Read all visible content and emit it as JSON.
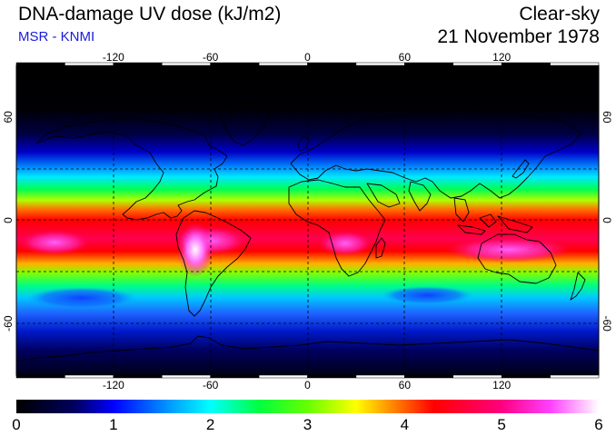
{
  "header": {
    "title": "DNA-damage UV dose (kJ/m2)",
    "source": "MSR - KNMI",
    "sky_condition": "Clear-sky",
    "date": "21 November 1978"
  },
  "map": {
    "projection": "equirectangular",
    "lon_range": [
      -180,
      180
    ],
    "lat_range": [
      -90,
      90
    ],
    "graticule": "dashed",
    "lon_ticks": [
      -120,
      -60,
      0,
      60,
      120
    ],
    "lon_tick_labels": [
      "-120",
      "-60",
      "0",
      "60",
      "120"
    ],
    "lat_ticks": [
      60,
      0,
      -60
    ],
    "lat_tick_labels": [
      "60",
      "0",
      "-60"
    ],
    "colors": {
      "coastline": "#000000",
      "graticule": "#000000",
      "frame": "#000000"
    }
  },
  "colorbar": {
    "min": 0,
    "max": 6,
    "labels": [
      "0",
      "1",
      "2",
      "3",
      "4",
      "5",
      "6"
    ],
    "color_stops": [
      {
        "value": 0.0,
        "color": "#000000"
      },
      {
        "value": 0.6,
        "color": "#000060"
      },
      {
        "value": 1.0,
        "color": "#0000ff"
      },
      {
        "value": 1.6,
        "color": "#00a0ff"
      },
      {
        "value": 2.0,
        "color": "#00ffff"
      },
      {
        "value": 2.5,
        "color": "#00ff40"
      },
      {
        "value": 3.0,
        "color": "#66ff00"
      },
      {
        "value": 3.5,
        "color": "#ffff00"
      },
      {
        "value": 4.0,
        "color": "#ff6000"
      },
      {
        "value": 4.3,
        "color": "#ff0000"
      },
      {
        "value": 5.0,
        "color": "#ff0080"
      },
      {
        "value": 5.5,
        "color": "#ff40ff"
      },
      {
        "value": 6.0,
        "color": "#ffffff"
      }
    ]
  }
}
